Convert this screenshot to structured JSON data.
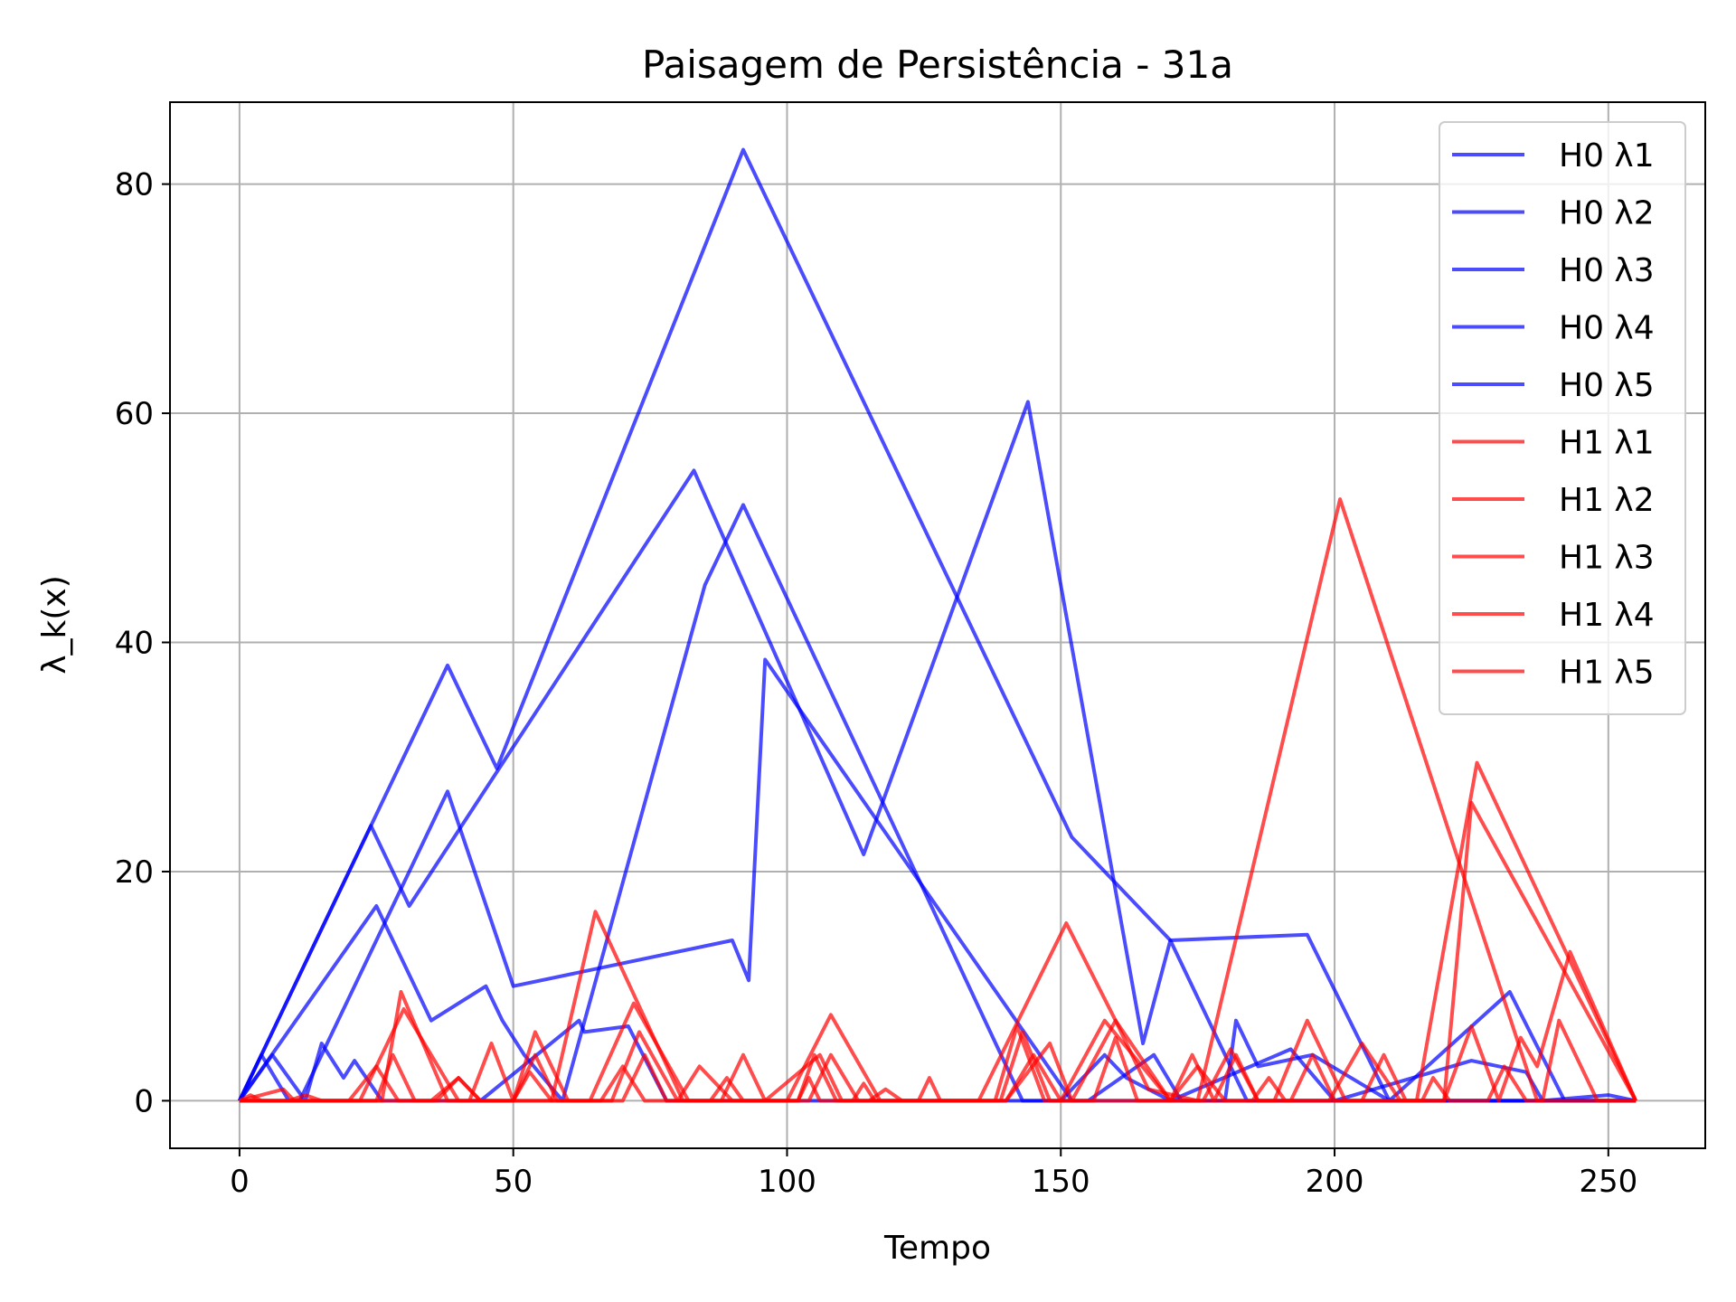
{
  "chart_data": {
    "type": "line",
    "title": "Paisagem de Persistência - 31a",
    "xlabel": "Tempo",
    "ylabel": "λ_k(x)",
    "xlim": [
      -12.7,
      267.7
    ],
    "ylim": [
      -4.15,
      87.15
    ],
    "xticks": [
      0,
      50,
      100,
      150,
      200,
      250
    ],
    "yticks": [
      0,
      20,
      40,
      60,
      80
    ],
    "grid": true,
    "legend_position": "top-right",
    "colors": {
      "H0": "#0000ff",
      "H1": "#ff0000"
    },
    "series_opacity": 0.7,
    "series": [
      {
        "name": "H0 λ1",
        "group": "H0",
        "points": [
          [
            0,
            0
          ],
          [
            38,
            38
          ],
          [
            47,
            29
          ],
          [
            92,
            83
          ],
          [
            152,
            23
          ],
          [
            170,
            14
          ],
          [
            195,
            14.5
          ],
          [
            210,
            0
          ],
          [
            255,
            0
          ]
        ]
      },
      {
        "name": "H0 λ2",
        "group": "H0",
        "points": [
          [
            0,
            0
          ],
          [
            24,
            24
          ],
          [
            31,
            17
          ],
          [
            83,
            55
          ],
          [
            114,
            21.5
          ],
          [
            144,
            61
          ],
          [
            165,
            5
          ],
          [
            170,
            14
          ],
          [
            184,
            0
          ],
          [
            255,
            0
          ]
        ]
      },
      {
        "name": "H0 λ3",
        "group": "H0",
        "points": [
          [
            0,
            0
          ],
          [
            4,
            4
          ],
          [
            9,
            0
          ],
          [
            11,
            0
          ],
          [
            38,
            27
          ],
          [
            50,
            10
          ],
          [
            90,
            14
          ],
          [
            93,
            10.5
          ],
          [
            96,
            38.5
          ],
          [
            152,
            0
          ],
          [
            255,
            0
          ]
        ]
      },
      {
        "name": "H0 λ4",
        "group": "H0",
        "points": [
          [
            0,
            0
          ],
          [
            25,
            17
          ],
          [
            35,
            7
          ],
          [
            45,
            10
          ],
          [
            48,
            7
          ],
          [
            52,
            4
          ],
          [
            59,
            0
          ],
          [
            85,
            45
          ],
          [
            92,
            52
          ],
          [
            118,
            25.5
          ],
          [
            143,
            0
          ],
          [
            155,
            0
          ],
          [
            167,
            4
          ],
          [
            172,
            0
          ],
          [
            180,
            0
          ],
          [
            182,
            7
          ],
          [
            186,
            3
          ],
          [
            196,
            4
          ],
          [
            210,
            0
          ],
          [
            232,
            9.5
          ],
          [
            242,
            0
          ],
          [
            255,
            0
          ]
        ]
      },
      {
        "name": "H0 λ5",
        "group": "H0",
        "points": [
          [
            0,
            0
          ],
          [
            6,
            4
          ],
          [
            12,
            0
          ],
          [
            15,
            5
          ],
          [
            19,
            2
          ],
          [
            21,
            3.5
          ],
          [
            26,
            0
          ],
          [
            40,
            0
          ],
          [
            44,
            0
          ],
          [
            62,
            7
          ],
          [
            63,
            6
          ],
          [
            71,
            6.5
          ],
          [
            78,
            0
          ],
          [
            80,
            0
          ],
          [
            90,
            0
          ],
          [
            100,
            0
          ],
          [
            150,
            0
          ],
          [
            158,
            4
          ],
          [
            162,
            2
          ],
          [
            170,
            0
          ],
          [
            192,
            4.5
          ],
          [
            200,
            0
          ],
          [
            225,
            3.5
          ],
          [
            235,
            2.5
          ],
          [
            238,
            0
          ],
          [
            250,
            0.5
          ],
          [
            255,
            0
          ]
        ]
      },
      {
        "name": "H1 λ1",
        "group": "H1",
        "points": [
          [
            0,
            0
          ],
          [
            26,
            0
          ],
          [
            29.5,
            9.5
          ],
          [
            38,
            0
          ],
          [
            57,
            0
          ],
          [
            65,
            16.5
          ],
          [
            81,
            0
          ],
          [
            100,
            0
          ],
          [
            108,
            7.5
          ],
          [
            117,
            0
          ],
          [
            135,
            0
          ],
          [
            151,
            15.5
          ],
          [
            160,
            7
          ],
          [
            166,
            1
          ],
          [
            175,
            0
          ],
          [
            201,
            52.5
          ],
          [
            237,
            0
          ],
          [
            255,
            0
          ]
        ]
      },
      {
        "name": "H1 λ2",
        "group": "H1",
        "points": [
          [
            0,
            0
          ],
          [
            22,
            0
          ],
          [
            30,
            8
          ],
          [
            40,
            0
          ],
          [
            60,
            0
          ],
          [
            64,
            0
          ],
          [
            72,
            8.5
          ],
          [
            82,
            0
          ],
          [
            104,
            0
          ],
          [
            108,
            4
          ],
          [
            113,
            0
          ],
          [
            138,
            0
          ],
          [
            142,
            6.5
          ],
          [
            147,
            0
          ],
          [
            150,
            0
          ],
          [
            158,
            7
          ],
          [
            170,
            0
          ],
          [
            189,
            0
          ],
          [
            195,
            7
          ],
          [
            202,
            0
          ],
          [
            215,
            0
          ],
          [
            226,
            29.5
          ],
          [
            255,
            0
          ]
        ]
      },
      {
        "name": "H1 λ3",
        "group": "H1",
        "points": [
          [
            0,
            0
          ],
          [
            8,
            1
          ],
          [
            10,
            0
          ],
          [
            25,
            0
          ],
          [
            28,
            4
          ],
          [
            32,
            0
          ],
          [
            42,
            0
          ],
          [
            46,
            5
          ],
          [
            50,
            0
          ],
          [
            54,
            6
          ],
          [
            60,
            0
          ],
          [
            68,
            0
          ],
          [
            73,
            6
          ],
          [
            80,
            0
          ],
          [
            84,
            3
          ],
          [
            90,
            0
          ],
          [
            96,
            0
          ],
          [
            106,
            4
          ],
          [
            110,
            0
          ],
          [
            128,
            0
          ],
          [
            140,
            0
          ],
          [
            148,
            5
          ],
          [
            152,
            0
          ],
          [
            160,
            7
          ],
          [
            170,
            0
          ],
          [
            174,
            4
          ],
          [
            178,
            0
          ],
          [
            182,
            4
          ],
          [
            186,
            0
          ],
          [
            199,
            0
          ],
          [
            205,
            5
          ],
          [
            212,
            0
          ],
          [
            220,
            0
          ],
          [
            225,
            26
          ],
          [
            255,
            0
          ]
        ]
      },
      {
        "name": "H1 λ4",
        "group": "H1",
        "points": [
          [
            0,
            0
          ],
          [
            20,
            0
          ],
          [
            25,
            3
          ],
          [
            29,
            0
          ],
          [
            36,
            0
          ],
          [
            40,
            2
          ],
          [
            44,
            0
          ],
          [
            50,
            0
          ],
          [
            54,
            4
          ],
          [
            58,
            0
          ],
          [
            70,
            0
          ],
          [
            74,
            4
          ],
          [
            78,
            0
          ],
          [
            88,
            0
          ],
          [
            92,
            4
          ],
          [
            96,
            0
          ],
          [
            102,
            0
          ],
          [
            105,
            4
          ],
          [
            109,
            0
          ],
          [
            115,
            0
          ],
          [
            118,
            1
          ],
          [
            121,
            0
          ],
          [
            139,
            0
          ],
          [
            143,
            6
          ],
          [
            148,
            0
          ],
          [
            156,
            0
          ],
          [
            160,
            5.5
          ],
          [
            164,
            0
          ],
          [
            176,
            0
          ],
          [
            181,
            4.5
          ],
          [
            186,
            0
          ],
          [
            192,
            0
          ],
          [
            196,
            4
          ],
          [
            200,
            0
          ],
          [
            220,
            0
          ],
          [
            225,
            6.5
          ],
          [
            230,
            0
          ],
          [
            234,
            5.5
          ],
          [
            237,
            3
          ],
          [
            243,
            13
          ],
          [
            255,
            0
          ]
        ]
      },
      {
        "name": "H1 λ5",
        "group": "H1",
        "points": [
          [
            0,
            0
          ],
          [
            2,
            0.5
          ],
          [
            4,
            0
          ],
          [
            9,
            0
          ],
          [
            12,
            0.5
          ],
          [
            15,
            0
          ],
          [
            35,
            0
          ],
          [
            40,
            2
          ],
          [
            44,
            0
          ],
          [
            50,
            0
          ],
          [
            53,
            2.5
          ],
          [
            57,
            0
          ],
          [
            66,
            0
          ],
          [
            70,
            3
          ],
          [
            74,
            0
          ],
          [
            86,
            0
          ],
          [
            89,
            2
          ],
          [
            92,
            0
          ],
          [
            102,
            0
          ],
          [
            104,
            2
          ],
          [
            106,
            0
          ],
          [
            112,
            0
          ],
          [
            114,
            1.5
          ],
          [
            116,
            0
          ],
          [
            124,
            0
          ],
          [
            126,
            2
          ],
          [
            128,
            0
          ],
          [
            140,
            0
          ],
          [
            145,
            4
          ],
          [
            150,
            0
          ],
          [
            165,
            0
          ],
          [
            170,
            0
          ],
          [
            175,
            3
          ],
          [
            180,
            0
          ],
          [
            185,
            0
          ],
          [
            188,
            2
          ],
          [
            191,
            0
          ],
          [
            205,
            0
          ],
          [
            209,
            4
          ],
          [
            213,
            0
          ],
          [
            216,
            0
          ],
          [
            218,
            2
          ],
          [
            221,
            0
          ],
          [
            228,
            0
          ],
          [
            231,
            3
          ],
          [
            235,
            0
          ],
          [
            238,
            0
          ],
          [
            241,
            7
          ],
          [
            248,
            0
          ],
          [
            255,
            0
          ]
        ]
      }
    ]
  }
}
